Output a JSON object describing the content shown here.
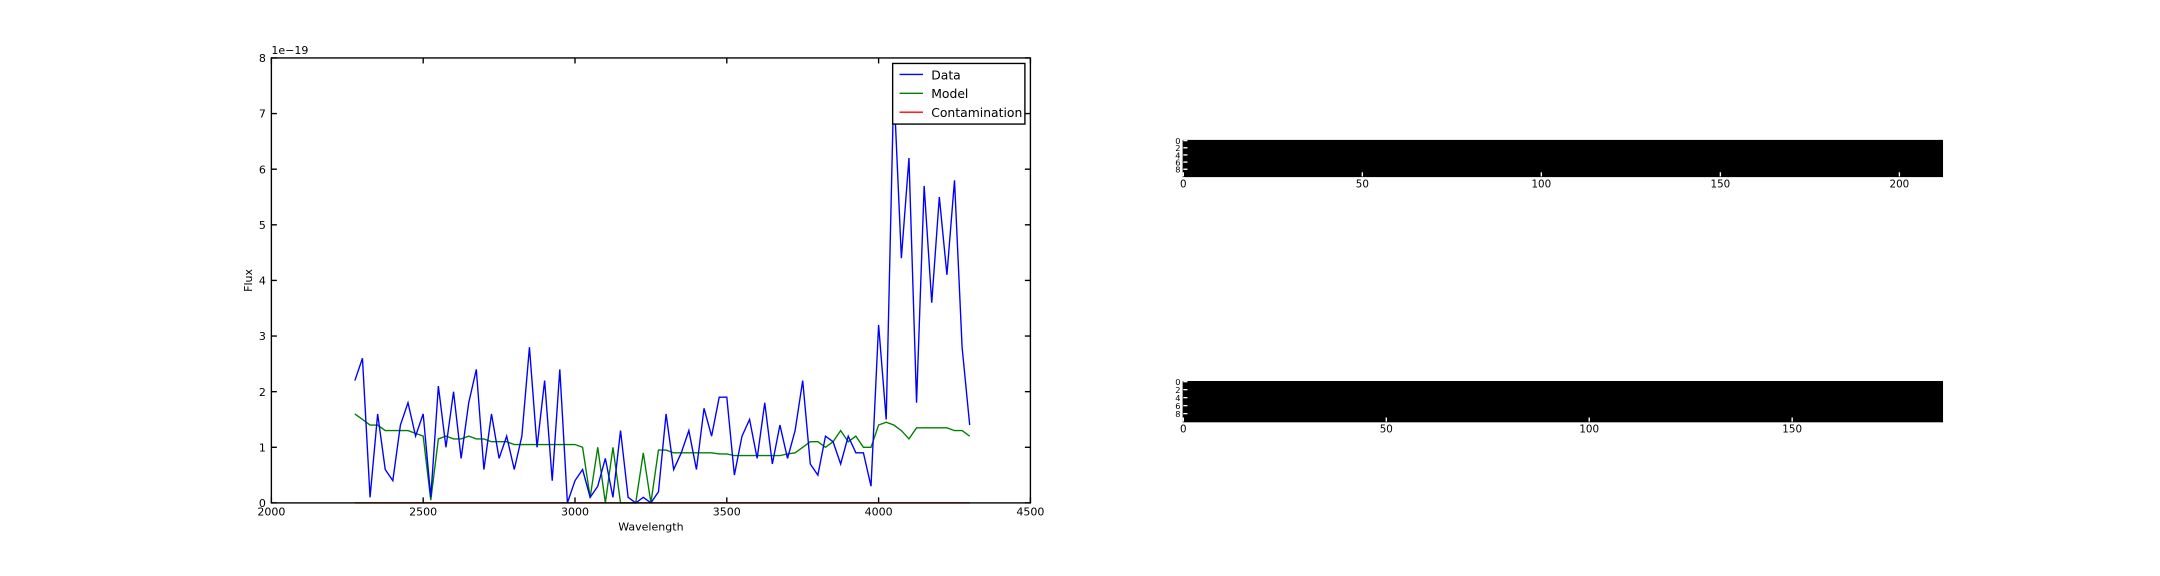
{
  "chart_data": [
    {
      "type": "line",
      "xlabel": "Wavelength",
      "ylabel": "Flux",
      "y_offset_label": "1e−19",
      "xlim": [
        2000,
        4500
      ],
      "ylim": [
        0,
        8
      ],
      "xticks": [
        2000,
        2500,
        3000,
        3500,
        4000,
        4500
      ],
      "yticks": [
        0,
        1,
        2,
        3,
        4,
        5,
        6,
        7,
        8
      ],
      "legend": "upper right",
      "x": [
        2275,
        2300,
        2325,
        2350,
        2375,
        2400,
        2425,
        2450,
        2475,
        2500,
        2525,
        2550,
        2575,
        2600,
        2625,
        2650,
        2675,
        2700,
        2725,
        2750,
        2775,
        2800,
        2825,
        2850,
        2875,
        2900,
        2925,
        2950,
        2975,
        3000,
        3025,
        3050,
        3075,
        3100,
        3125,
        3150,
        3175,
        3200,
        3225,
        3250,
        3275,
        3300,
        3325,
        3350,
        3375,
        3400,
        3425,
        3450,
        3475,
        3500,
        3525,
        3550,
        3575,
        3600,
        3625,
        3650,
        3675,
        3700,
        3725,
        3750,
        3775,
        3800,
        3825,
        3850,
        3875,
        3900,
        3925,
        3950,
        3975,
        4000,
        4025,
        4050,
        4075,
        4100,
        4125,
        4150,
        4175,
        4200,
        4225,
        4250,
        4275,
        4300
      ],
      "series": [
        {
          "name": "Data",
          "color": "#0000ff",
          "values": [
            2.2,
            2.6,
            0.1,
            1.6,
            0.6,
            0.4,
            1.4,
            1.8,
            1.2,
            1.6,
            0.1,
            2.1,
            1.0,
            2.0,
            0.8,
            1.8,
            2.4,
            0.6,
            1.6,
            0.8,
            1.2,
            0.6,
            1.2,
            2.8,
            1.0,
            2.2,
            0.4,
            2.4,
            0.0,
            0.4,
            0.6,
            0.1,
            0.3,
            0.8,
            0.1,
            1.3,
            0.1,
            0.0,
            0.1,
            0.0,
            0.2,
            1.6,
            0.6,
            0.9,
            1.3,
            0.6,
            1.7,
            1.2,
            1.9,
            1.9,
            0.5,
            1.2,
            1.5,
            0.8,
            1.8,
            0.7,
            1.4,
            0.8,
            1.3,
            2.2,
            0.7,
            0.5,
            1.2,
            1.1,
            0.7,
            1.2,
            0.9,
            0.9,
            0.3,
            3.2,
            1.5,
            7.5,
            4.4,
            6.2,
            1.8,
            5.7,
            3.6,
            5.5,
            4.1,
            5.8,
            2.8,
            1.4
          ]
        },
        {
          "name": "Model",
          "color": "#008000",
          "values": [
            1.6,
            1.5,
            1.4,
            1.4,
            1.3,
            1.3,
            1.3,
            1.3,
            1.25,
            1.2,
            0.05,
            1.15,
            1.2,
            1.15,
            1.15,
            1.2,
            1.15,
            1.15,
            1.1,
            1.1,
            1.1,
            1.05,
            1.05,
            1.05,
            1.05,
            1.05,
            1.05,
            1.05,
            1.05,
            1.05,
            1.0,
            0.1,
            1.0,
            0.0,
            1.0,
            0.0,
            0.0,
            0.0,
            0.9,
            0.0,
            0.95,
            0.95,
            0.9,
            0.9,
            0.9,
            0.9,
            0.9,
            0.9,
            0.88,
            0.88,
            0.85,
            0.85,
            0.85,
            0.85,
            0.85,
            0.85,
            0.85,
            0.88,
            0.9,
            1.0,
            1.1,
            1.1,
            1.0,
            1.1,
            1.3,
            1.1,
            1.2,
            1.0,
            1.0,
            1.4,
            1.45,
            1.4,
            1.3,
            1.15,
            1.35,
            1.35,
            1.35,
            1.35,
            1.35,
            1.3,
            1.3,
            1.2
          ]
        },
        {
          "name": "Contamination",
          "color": "#ff0000",
          "values": [
            0,
            0,
            0,
            0,
            0,
            0,
            0,
            0,
            0,
            0,
            0,
            0,
            0,
            0,
            0,
            0,
            0,
            0,
            0,
            0,
            0,
            0,
            0,
            0,
            0,
            0,
            0,
            0,
            0,
            0,
            0,
            0,
            0,
            0,
            0,
            0,
            0,
            0,
            0,
            0,
            0,
            0,
            0,
            0,
            0,
            0,
            0,
            0,
            0,
            0,
            0,
            0,
            0,
            0,
            0,
            0,
            0,
            0,
            0,
            0,
            0,
            0,
            0,
            0,
            0,
            0,
            0,
            0,
            0,
            0,
            0,
            0,
            0,
            0,
            0,
            0,
            0,
            0,
            0,
            0,
            0,
            0
          ]
        }
      ]
    },
    {
      "type": "image",
      "xlim": [
        0,
        212
      ],
      "ylim": [
        10,
        0
      ],
      "xticks": [
        0,
        50,
        100,
        150,
        200
      ],
      "yticks": [
        0,
        2,
        4,
        6,
        8
      ]
    },
    {
      "type": "image",
      "xlim": [
        0,
        187
      ],
      "ylim": [
        10,
        0
      ],
      "xticks": [
        0,
        50,
        100,
        150
      ],
      "yticks": [
        0,
        2,
        4,
        6,
        8
      ]
    }
  ]
}
